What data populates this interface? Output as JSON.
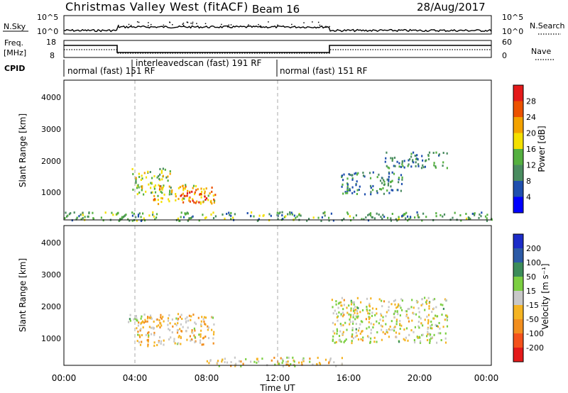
{
  "header": {
    "title": "Christmas Valley West (fitACF)",
    "beam": "Beam 16",
    "date": "28/Aug/2017"
  },
  "noise_panel": {
    "left_label": "N.Sky",
    "left_ticks": [
      "10^5",
      "10^0"
    ],
    "right_ticks": [
      "10^5",
      "10^0"
    ],
    "right_label": "N.Search"
  },
  "freq_panel": {
    "left_label_1": "Freq.",
    "left_label_2": "[MHz]",
    "left_ticks": [
      "18",
      "8"
    ],
    "right_ticks": [
      "60",
      "0"
    ],
    "right_label": "Nave"
  },
  "cpid": {
    "label": "CPID",
    "segments": [
      {
        "text": "normal (fast) 151 RF",
        "start_hour": 0
      },
      {
        "text": "interleavedscan (fast) 191 RF",
        "start_hour": 4.0
      },
      {
        "text": "normal (fast) 151 RF",
        "start_hour": 12.0
      }
    ]
  },
  "x_axis": {
    "ticks": [
      "00:00",
      "04:00",
      "08:00",
      "12:00",
      "16:00",
      "20:00",
      "00:00"
    ],
    "label": "Time UT"
  },
  "power_panel": {
    "ylabel": "Slant Range [km]",
    "yticks": [
      "1000",
      "2000",
      "3000",
      "4000"
    ],
    "colorbar_label": "Power [dB]",
    "colorbar_ticks": [
      "4",
      "8",
      "12",
      "16",
      "20",
      "24",
      "28"
    ],
    "colors": [
      "#0000ff",
      "#1f4fae",
      "#4a8c60",
      "#55b040",
      "#f4e000",
      "#f3a200",
      "#ec5200",
      "#e41a1a"
    ]
  },
  "velocity_panel": {
    "ylabel": "Slant Range [km]",
    "yticks": [
      "1000",
      "2000",
      "3000",
      "4000"
    ],
    "colorbar_label": "Velocity [m s⁻¹]",
    "colorbar_ticks": [
      "-200",
      "-100",
      "-50",
      "-15",
      "15",
      "50",
      "100",
      "200"
    ],
    "colors": [
      "#e41a1a",
      "#f4521c",
      "#f28e1e",
      "#f5b423",
      "#c8c8c8",
      "#7ccf42",
      "#3c8c5a",
      "#2c5aa6",
      "#1c2cc8"
    ]
  },
  "chart_data": {
    "type": "heatmap",
    "title": "Christmas Valley West (fitACF)",
    "xlabel": "Time UT",
    "ylabel": "Slant Range [km]",
    "xlim_hours": [
      0,
      24
    ],
    "ylim_km": [
      180,
      4500
    ],
    "series": [
      {
        "name": "Power [dB]",
        "regions": [
          {
            "t": [
              3.8,
              6.0
            ],
            "r": [
              1000,
              1800
            ],
            "value": 16
          },
          {
            "t": [
              5.0,
              8.5
            ],
            "r": [
              700,
              1300
            ],
            "value": 20
          },
          {
            "t": [
              6.5,
              8.0
            ],
            "r": [
              750,
              1100
            ],
            "value": 28
          },
          {
            "t": [
              15.5,
              19.0
            ],
            "r": [
              1000,
              1700
            ],
            "value": 10
          },
          {
            "t": [
              18.0,
              21.5
            ],
            "r": [
              1800,
              2300
            ],
            "value": 10
          },
          {
            "t": [
              0,
              24
            ],
            "r": [
              180,
              450
            ],
            "value": 12
          }
        ]
      },
      {
        "name": "Velocity [m s⁻¹]",
        "regions": [
          {
            "t": [
              4.0,
              8.5
            ],
            "r": [
              800,
              1800
            ],
            "value": -50
          },
          {
            "t": [
              3.5,
              4.5
            ],
            "r": [
              1500,
              1800
            ],
            "value": 50
          },
          {
            "t": [
              15.0,
              21.5
            ],
            "r": [
              900,
              2300
            ],
            "value": 0
          },
          {
            "t": [
              8.0,
              16.0
            ],
            "r": [
              180,
              450
            ],
            "value": -20
          }
        ]
      }
    ]
  }
}
